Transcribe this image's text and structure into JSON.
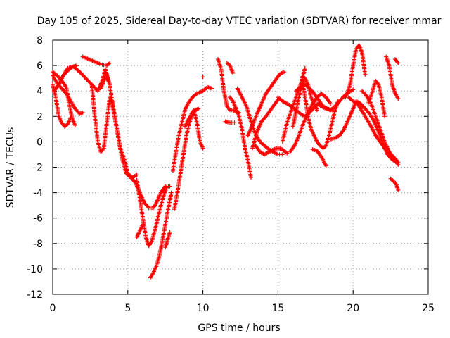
{
  "chart_data": {
    "type": "scatter",
    "title": "Day 105 of 2025, Sidereal Day-to-day VTEC variation (SDTVAR) for receiver mmar",
    "xlabel": "GPS time / hours",
    "ylabel": "SDTVAR / TECUs",
    "xlim": [
      0,
      25
    ],
    "ylim": [
      -12,
      8
    ],
    "xticks": [
      0,
      5,
      10,
      15,
      20,
      25
    ],
    "yticks": [
      -12,
      -10,
      -8,
      -6,
      -4,
      -2,
      0,
      2,
      4,
      6,
      8
    ],
    "grid": true,
    "marker": "+",
    "color": "#ff0000",
    "series": [
      {
        "name": "s1",
        "x": [
          0.0,
          0.3,
          0.6,
          0.9,
          1.2,
          1.5,
          1.8,
          2.0
        ],
        "y": [
          5.2,
          4.6,
          4.2,
          3.8,
          3.2,
          2.6,
          2.2,
          2.3
        ]
      },
      {
        "name": "s2",
        "x": [
          0.0,
          0.2,
          0.4,
          0.6,
          0.8,
          1.0,
          1.2
        ],
        "y": [
          4.5,
          3.5,
          2.0,
          1.5,
          1.2,
          1.4,
          1.9
        ]
      },
      {
        "name": "s3",
        "x": [
          0.0,
          0.3,
          0.6,
          0.9,
          1.1,
          1.3,
          1.5
        ],
        "y": [
          5.5,
          5.2,
          4.8,
          4.3,
          3.0,
          1.8,
          1.3
        ]
      },
      {
        "name": "s4",
        "x": [
          0.6,
          1.0,
          1.4,
          1.8,
          2.2,
          2.6,
          3.0,
          3.3,
          3.5,
          3.7
        ],
        "y": [
          5.0,
          5.8,
          5.9,
          5.5,
          5.0,
          4.5,
          4.0,
          4.8,
          5.7,
          4.8
        ]
      },
      {
        "name": "s5",
        "x": [
          0.1,
          0.4,
          0.7,
          1.0,
          1.3,
          1.6
        ],
        "y": [
          4.0,
          4.5,
          5.2,
          5.6,
          5.9,
          6.0
        ]
      },
      {
        "name": "s6",
        "x": [
          2.0,
          2.4,
          2.8,
          3.2,
          3.6,
          3.8
        ],
        "y": [
          6.7,
          6.5,
          6.3,
          6.1,
          6.0,
          6.2
        ]
      },
      {
        "name": "s7",
        "x": [
          2.6,
          2.8,
          3.0,
          3.2,
          3.4,
          3.6,
          3.8,
          4.0,
          4.2,
          4.5,
          4.8,
          5.0,
          5.3,
          5.6
        ],
        "y": [
          4.5,
          2.0,
          0.0,
          -0.8,
          -0.5,
          1.5,
          3.5,
          3.0,
          1.5,
          -0.5,
          -1.5,
          -2.5,
          -2.8,
          -2.6
        ]
      },
      {
        "name": "s8",
        "x": [
          3.2,
          3.4,
          3.6,
          3.8,
          4.0,
          4.3,
          4.6,
          4.9,
          5.2,
          5.5,
          5.8,
          6.1,
          6.4,
          6.7,
          6.9,
          7.2,
          7.5
        ],
        "y": [
          4.2,
          4.8,
          5.3,
          4.5,
          2.8,
          0.8,
          -1.2,
          -2.5,
          -2.8,
          -3.2,
          -4.0,
          -4.8,
          -5.2,
          -5.2,
          -4.8,
          -4.0,
          -3.5
        ]
      },
      {
        "name": "s9",
        "x": [
          5.6,
          5.8,
          6.0,
          6.2,
          6.4,
          6.6,
          6.8,
          7.0,
          7.2,
          7.4,
          7.6,
          7.8
        ],
        "y": [
          -3.0,
          -4.5,
          -6.0,
          -7.5,
          -8.2,
          -7.8,
          -7.0,
          -6.0,
          -5.0,
          -4.2,
          -3.5,
          -3.5
        ]
      },
      {
        "name": "s10",
        "x": [
          5.6,
          5.8,
          6.0
        ],
        "y": [
          -7.5,
          -7.0,
          -6.5
        ]
      },
      {
        "name": "s11",
        "x": [
          6.5,
          6.7,
          6.9,
          7.1,
          7.3,
          7.5,
          7.7,
          7.9
        ],
        "y": [
          -10.7,
          -10.3,
          -9.8,
          -9.0,
          -7.8,
          -6.5,
          -5.2,
          -4.0
        ]
      },
      {
        "name": "s12",
        "x": [
          7.5,
          7.6,
          7.7,
          7.8
        ],
        "y": [
          -8.3,
          -7.9,
          -7.5,
          -7.1
        ]
      },
      {
        "name": "s13",
        "x": [
          8.0,
          8.2,
          8.4,
          8.6,
          8.8,
          9.0,
          9.3,
          9.6,
          10.0,
          10.3,
          10.6
        ],
        "y": [
          -2.3,
          -0.8,
          0.5,
          1.5,
          2.5,
          3.0,
          3.5,
          3.8,
          4.0,
          4.3,
          4.2
        ]
      },
      {
        "name": "s14",
        "x": [
          8.1,
          8.3,
          8.5,
          8.7,
          8.9,
          9.1,
          9.3,
          9.5,
          9.7
        ],
        "y": [
          -5.3,
          -4.0,
          -2.5,
          -1.0,
          0.5,
          1.5,
          2.2,
          2.5,
          2.6
        ]
      },
      {
        "name": "s15",
        "x": [
          8.8,
          9.1,
          9.4,
          9.6,
          9.8,
          10.0
        ],
        "y": [
          1.2,
          1.9,
          2.5,
          1.5,
          0.0,
          -0.5
        ]
      },
      {
        "name": "s16",
        "x": [
          10.0
        ],
        "y": [
          5.1
        ]
      },
      {
        "name": "s17",
        "x": [
          11.0,
          11.2,
          11.4,
          11.6,
          11.8,
          12.0,
          12.2,
          12.4
        ],
        "y": [
          6.5,
          5.8,
          4.0,
          2.8,
          2.5,
          2.5,
          2.4,
          2.3
        ]
      },
      {
        "name": "s18",
        "x": [
          11.5,
          11.8,
          12.1
        ],
        "y": [
          1.6,
          1.5,
          1.5
        ]
      },
      {
        "name": "s19",
        "x": [
          11.6,
          11.8,
          12.0
        ],
        "y": [
          6.2,
          6.0,
          5.4
        ]
      },
      {
        "name": "s20",
        "x": [
          11.8,
          12.0,
          12.2,
          12.4,
          12.6,
          12.8,
          13.0,
          13.2
        ],
        "y": [
          3.5,
          3.2,
          2.6,
          2.0,
          1.0,
          -0.5,
          -1.5,
          -2.8
        ]
      },
      {
        "name": "s21",
        "x": [
          12.3,
          12.6,
          12.9,
          13.2,
          13.5,
          13.8,
          14.1,
          14.4,
          14.7,
          15.0,
          15.3
        ],
        "y": [
          4.2,
          3.5,
          2.8,
          1.6,
          0.6,
          0.0,
          -0.3,
          -0.6,
          -0.8,
          -1.0,
          -1.0
        ]
      },
      {
        "name": "s22",
        "x": [
          13.0,
          13.3,
          13.6,
          13.9,
          14.2,
          14.5,
          14.8,
          15.1,
          15.4
        ],
        "y": [
          0.5,
          1.3,
          2.2,
          3.0,
          3.8,
          4.3,
          4.8,
          5.3,
          5.5
        ]
      },
      {
        "name": "s23",
        "x": [
          13.3,
          13.6,
          13.9,
          14.2,
          14.5,
          14.8,
          15.0
        ],
        "y": [
          -0.5,
          0.8,
          1.6,
          2.0,
          2.5,
          3.0,
          3.3
        ]
      },
      {
        "name": "s24",
        "x": [
          13.5,
          13.8,
          14.1,
          14.4,
          14.7,
          15.0,
          15.3,
          15.6
        ],
        "y": [
          -0.3,
          -0.8,
          -1.0,
          -0.8,
          -0.6,
          -0.5,
          -0.6,
          -0.9
        ]
      },
      {
        "name": "s25",
        "x": [
          15.0,
          15.3,
          15.6,
          15.9,
          16.2,
          16.5,
          16.8,
          17.1,
          17.4,
          17.7
        ],
        "y": [
          3.5,
          3.2,
          3.0,
          2.8,
          2.5,
          2.2,
          2.0,
          2.3,
          2.7,
          3.0
        ]
      },
      {
        "name": "s26",
        "x": [
          15.3,
          15.6,
          15.9,
          16.2,
          16.5,
          16.8
        ],
        "y": [
          0.0,
          1.5,
          2.5,
          3.5,
          4.5,
          5.8
        ]
      },
      {
        "name": "s27",
        "x": [
          15.8,
          16.1,
          16.4,
          16.7,
          17.0,
          17.3,
          17.6,
          17.9,
          18.2,
          18.5
        ],
        "y": [
          -0.8,
          -0.3,
          0.5,
          1.5,
          2.2,
          3.0,
          3.5,
          3.8,
          3.5,
          3.0
        ]
      },
      {
        "name": "s28",
        "x": [
          16.0,
          16.2,
          16.4,
          16.6,
          16.8,
          17.0,
          17.2,
          17.4,
          17.6
        ],
        "y": [
          1.2,
          2.4,
          3.6,
          4.5,
          5.0,
          4.5,
          3.5,
          3.0,
          2.5
        ]
      },
      {
        "name": "s29",
        "x": [
          16.2,
          16.5,
          16.8,
          17.1,
          17.4,
          17.7,
          18.0,
          18.3,
          18.6
        ],
        "y": [
          4.0,
          4.3,
          4.5,
          4.2,
          3.8,
          3.3,
          2.8,
          2.6,
          2.5
        ]
      },
      {
        "name": "s30",
        "x": [
          16.6,
          16.8,
          17.0,
          17.2,
          17.4,
          17.6,
          17.8,
          18.0,
          18.2,
          18.4,
          18.6,
          18.8,
          19.0
        ],
        "y": [
          4.8,
          3.5,
          2.0,
          1.0,
          0.5,
          0.0,
          -0.3,
          -0.5,
          -0.3,
          0.5,
          1.5,
          2.5,
          3.2
        ]
      },
      {
        "name": "s31",
        "x": [
          17.3,
          17.6,
          17.9,
          18.2
        ],
        "y": [
          -0.6,
          -0.7,
          -1.2,
          -1.9
        ]
      },
      {
        "name": "s32",
        "x": [
          17.6,
          17.9,
          18.2,
          18.5,
          18.8,
          19.1,
          19.4,
          19.7,
          20.0
        ],
        "y": [
          3.0,
          2.8,
          2.6,
          2.5,
          2.8,
          3.2,
          3.6,
          3.9,
          4.1
        ]
      },
      {
        "name": "s33",
        "x": [
          18.5,
          18.8,
          19.1,
          19.4,
          19.7,
          20.0,
          20.2
        ],
        "y": [
          0.2,
          0.3,
          0.5,
          1.0,
          1.8,
          2.6,
          3.2
        ]
      },
      {
        "name": "s34",
        "x": [
          19.5,
          19.8,
          20.0,
          20.2,
          20.4,
          20.6,
          20.8
        ],
        "y": [
          3.5,
          4.5,
          6.0,
          7.3,
          7.6,
          7.0,
          5.3
        ]
      },
      {
        "name": "s35",
        "x": [
          19.7,
          20.0,
          20.3,
          20.6,
          20.9,
          21.2,
          21.5,
          21.8,
          22.1,
          22.4,
          22.7,
          23.0
        ],
        "y": [
          3.5,
          3.2,
          3.0,
          2.4,
          1.8,
          1.2,
          0.5,
          0.0,
          -0.5,
          -0.8,
          -1.2,
          -1.6
        ]
      },
      {
        "name": "s36",
        "x": [
          20.2,
          20.5,
          20.8,
          21.1,
          21.4,
          21.7,
          22.0,
          22.3,
          22.6,
          22.9
        ],
        "y": [
          3.2,
          3.0,
          2.6,
          2.2,
          1.6,
          0.8,
          -0.2,
          -1.0,
          -1.4,
          -1.6
        ]
      },
      {
        "name": "s37",
        "x": [
          20.6,
          20.9,
          21.2,
          21.5,
          21.8,
          22.1,
          22.4,
          22.7,
          23.0
        ],
        "y": [
          4.0,
          3.6,
          3.0,
          2.0,
          1.0,
          0.0,
          -0.8,
          -1.3,
          -1.8
        ]
      },
      {
        "name": "s38",
        "x": [
          21.0,
          21.3,
          21.5,
          21.7,
          21.9,
          22.1
        ],
        "y": [
          3.0,
          4.0,
          4.8,
          4.5,
          3.5,
          2.0
        ]
      },
      {
        "name": "s39",
        "x": [
          22.2,
          22.4,
          22.6,
          22.8,
          23.0
        ],
        "y": [
          6.7,
          6.0,
          4.5,
          3.8,
          3.4
        ]
      },
      {
        "name": "s40",
        "x": [
          22.8,
          23.0
        ],
        "y": [
          6.5,
          6.2
        ]
      },
      {
        "name": "s41",
        "x": [
          22.5,
          22.7,
          22.9,
          23.0
        ],
        "y": [
          -2.9,
          -3.1,
          -3.4,
          -3.8
        ]
      }
    ]
  }
}
